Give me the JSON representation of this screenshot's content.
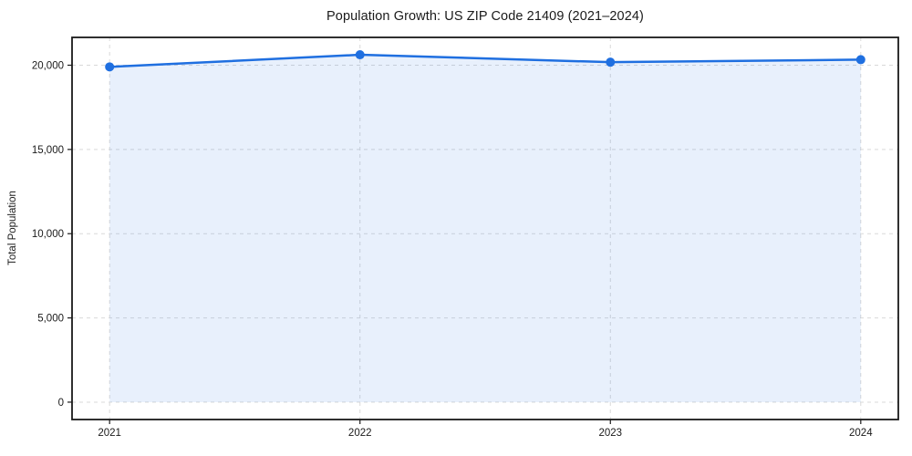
{
  "title": "Population Growth: US ZIP Code 21409 (2021–2024)",
  "chart_data": {
    "type": "line",
    "title": "Population Growth: US ZIP Code 21409 (2021–2024)",
    "xlabel": "",
    "ylabel": "Total Population",
    "categories": [
      "2021",
      "2022",
      "2023",
      "2024"
    ],
    "series": [
      {
        "name": "Total Population",
        "values": [
          19900,
          20620,
          20180,
          20330
        ]
      }
    ],
    "area_fill_baseline": 0,
    "xlim_index": [
      -0.15,
      3.15
    ],
    "ylim": [
      -1031,
      21651
    ],
    "yticks": [
      0,
      5000,
      10000,
      15000,
      20000
    ],
    "ytick_labels": [
      "0",
      "5,000",
      "10,000",
      "15,000",
      "20,000"
    ],
    "xtick_labels": [
      "2021",
      "2022",
      "2023",
      "2024"
    ],
    "grid": true,
    "grid_style": "dashed",
    "legend": "none",
    "colors": {
      "line": "#1f6fe0",
      "marker": "#1f6fe0",
      "fill": "#1f6fe0",
      "fill_opacity": "0.1",
      "grid": "#d9d9d9",
      "spine": "#1a1a1a",
      "tick_text": "#1a1a1a",
      "background": "#ffffff"
    }
  }
}
